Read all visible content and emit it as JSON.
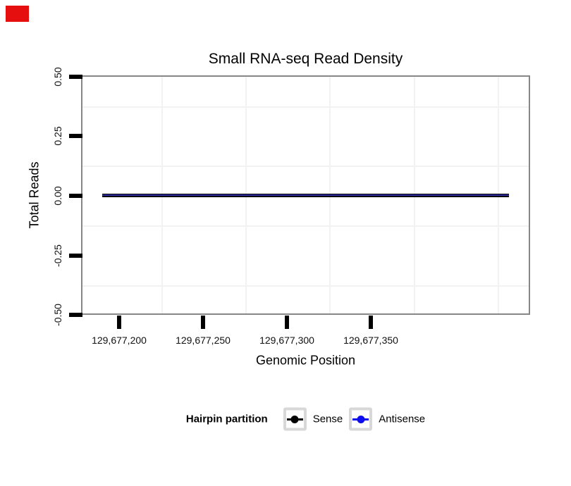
{
  "corner_marker": {
    "color": "#e60f0f"
  },
  "chart_data": {
    "type": "line",
    "title": "Small RNA-seq Read Density",
    "xlabel": "Genomic Position",
    "ylabel": "Total Reads",
    "x_tick_labels": [
      "129,677,200",
      "129,677,250",
      "129,677,300",
      "129,677,350"
    ],
    "x_tick_values": [
      129677200,
      129677250,
      129677300,
      129677350
    ],
    "y_tick_labels": [
      "0.50",
      "0.25",
      "0.00",
      "-0.25",
      "-0.50"
    ],
    "y_tick_values": [
      0.5,
      0.25,
      0.0,
      -0.25,
      -0.5
    ],
    "xlim": [
      129677178,
      129677443
    ],
    "ylim": [
      -0.5,
      0.5
    ],
    "grid": {
      "minor_color": "#f2f2f2",
      "major_visible": false
    },
    "panel_border_color": "#878787",
    "series": [
      {
        "name": "Sense",
        "color": "#000000",
        "x": [
          129677190,
          129677431
        ],
        "values": [
          0,
          0
        ]
      },
      {
        "name": "Antisense",
        "color": "#0d0dee",
        "x": [
          129677190,
          129677431
        ],
        "values": [
          0,
          0
        ]
      }
    ],
    "legend": {
      "title": "Hairpin partition",
      "position": "bottom",
      "items": [
        {
          "label": "Sense",
          "color": "#000000"
        },
        {
          "label": "Antisense",
          "color": "#0d0dee"
        }
      ]
    }
  }
}
